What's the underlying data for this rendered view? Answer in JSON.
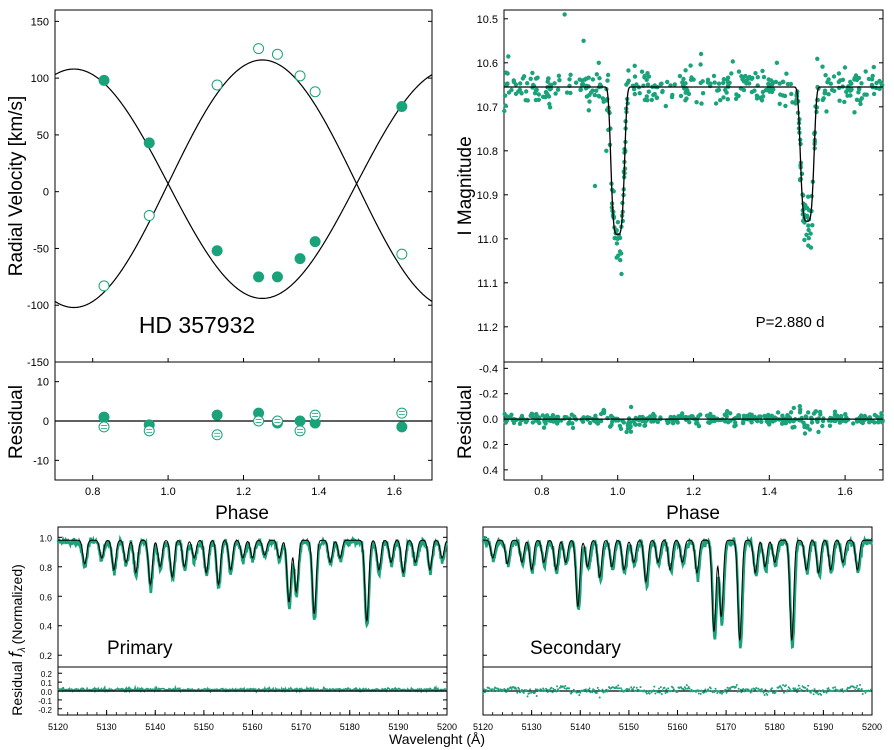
{
  "colors": {
    "data": "#1aa37a",
    "model": "#000000",
    "frame": "#000000"
  },
  "chart_data": [
    {
      "id": "rv",
      "type": "scatter",
      "ylabel": "Radial Velocity [km/s]",
      "annotation": "HD 357932",
      "xlim": [
        0.7,
        1.7
      ],
      "ylim": [
        -150,
        160
      ],
      "yticks": [
        "-150",
        "-100",
        "-50",
        "0",
        "50",
        "100",
        "150"
      ],
      "series": [
        {
          "marker": "filled",
          "x": [
            0.83,
            0.95,
            1.13,
            1.24,
            1.29,
            1.35,
            1.39,
            1.62
          ],
          "y": [
            98,
            43,
            -52,
            -75,
            -75,
            -59,
            -44,
            75
          ]
        },
        {
          "marker": "open",
          "x": [
            0.83,
            0.95,
            1.13,
            1.24,
            1.29,
            1.35,
            1.39,
            1.62
          ],
          "y": [
            -83,
            -21,
            94,
            126,
            121,
            102,
            88,
            -55
          ]
        }
      ],
      "model": {
        "gamma": 7,
        "k1": 101,
        "k2": 109,
        "phase_zero": 1.0
      }
    },
    {
      "id": "rv-resid",
      "type": "scatter",
      "ylabel": "Residual",
      "xlabel": "Phase",
      "xlim": [
        0.7,
        1.7
      ],
      "ylim": [
        -15,
        15
      ],
      "yticks": [
        "-10",
        "0",
        "10"
      ],
      "xticks": [
        "0.8",
        "1.0",
        "1.2",
        "1.4",
        "1.6"
      ],
      "series": [
        {
          "marker": "filled",
          "x": [
            0.83,
            0.95,
            1.13,
            1.24,
            1.29,
            1.35,
            1.39,
            1.62
          ],
          "y": [
            1,
            -1,
            1.5,
            2,
            -0.5,
            0,
            -0.5,
            -1.5
          ]
        },
        {
          "marker": "open",
          "x": [
            0.83,
            0.95,
            1.13,
            1.24,
            1.29,
            1.35,
            1.39,
            1.62
          ],
          "y": [
            -1.5,
            -2.5,
            -3.5,
            0,
            0,
            -2.5,
            1.5,
            2
          ]
        }
      ]
    },
    {
      "id": "lc",
      "type": "scatter",
      "ylabel": "I Magnitude",
      "annotation": "P=2.880 d",
      "xlim": [
        0.7,
        1.7
      ],
      "ylim": [
        11.28,
        10.48
      ],
      "yticks": [
        "10.5",
        "10.6",
        "10.7",
        "10.8",
        "10.9",
        "11.0",
        "11.1",
        "11.2"
      ],
      "outliers": {
        "x": [
          0.86,
          0.91,
          0.94,
          0.99,
          1.0,
          1.01,
          0.97,
          1.22,
          1.42,
          1.49,
          1.5,
          1.51,
          0.95,
          1.32
        ],
        "y": [
          10.49,
          10.55,
          10.88,
          10.95,
          11.0,
          11.08,
          10.8,
          10.58,
          10.6,
          10.92,
          10.95,
          11.02,
          10.6,
          10.62
        ]
      },
      "model": {
        "base": 10.655,
        "depth1": 0.335,
        "depth2": 0.305,
        "width": 0.02
      }
    },
    {
      "id": "lc-resid",
      "type": "scatter",
      "ylabel": "Residual",
      "xlabel": "Phase",
      "xlim": [
        0.7,
        1.7
      ],
      "ylim": [
        0.48,
        -0.45
      ],
      "yticks": [
        "-0.4",
        "-0.2",
        "0.0",
        "0.2",
        "0.4"
      ],
      "xticks": [
        "0.8",
        "1.0",
        "1.2",
        "1.4",
        "1.6"
      ]
    },
    {
      "id": "sp1",
      "type": "line",
      "annotation": "Primary",
      "xlim": [
        5120,
        5200
      ],
      "ylim": [
        0.12,
        1.07
      ],
      "yticks": [
        "0.2",
        "0.4",
        "0.6",
        "0.8",
        "1.0"
      ],
      "lines": [
        {
          "c": 5125.5,
          "d": 0.16
        },
        {
          "c": 5129,
          "d": 0.12
        },
        {
          "c": 5131.5,
          "d": 0.2
        },
        {
          "c": 5134,
          "d": 0.15
        },
        {
          "c": 5136,
          "d": 0.22
        },
        {
          "c": 5139,
          "d": 0.3
        },
        {
          "c": 5141,
          "d": 0.18
        },
        {
          "c": 5143.5,
          "d": 0.25
        },
        {
          "c": 5146,
          "d": 0.18
        },
        {
          "c": 5148,
          "d": 0.12
        },
        {
          "c": 5150.5,
          "d": 0.22
        },
        {
          "c": 5153,
          "d": 0.3
        },
        {
          "c": 5155.5,
          "d": 0.2
        },
        {
          "c": 5158,
          "d": 0.12
        },
        {
          "c": 5160,
          "d": 0.12
        },
        {
          "c": 5162.5,
          "d": 0.1
        },
        {
          "c": 5165.5,
          "d": 0.12
        },
        {
          "c": 5167.5,
          "d": 0.42
        },
        {
          "c": 5169,
          "d": 0.35
        },
        {
          "c": 5172.7,
          "d": 0.5
        },
        {
          "c": 5176,
          "d": 0.15
        },
        {
          "c": 5178,
          "d": 0.12
        },
        {
          "c": 5183.5,
          "d": 0.55
        },
        {
          "c": 5186,
          "d": 0.2
        },
        {
          "c": 5188.5,
          "d": 0.15
        },
        {
          "c": 5191,
          "d": 0.22
        },
        {
          "c": 5193.5,
          "d": 0.15
        },
        {
          "c": 5196.5,
          "d": 0.2
        },
        {
          "c": 5199,
          "d": 0.12
        }
      ]
    },
    {
      "id": "sp1-resid",
      "type": "line",
      "ylabel": "Residual",
      "xlim": [
        5120,
        5200
      ],
      "ylim": [
        -0.27,
        0.27
      ],
      "yticks": [
        "0.2",
        "0.1",
        "0.0",
        "-0.1",
        "-0.2"
      ],
      "xticks": [
        "5120",
        "5130",
        "5140",
        "5150",
        "5160",
        "5170",
        "5180",
        "5190",
        "5200"
      ]
    },
    {
      "id": "sp2",
      "type": "line",
      "annotation": "Secondary",
      "xlim": [
        5120,
        5200
      ],
      "ylim": [
        0.12,
        1.07
      ],
      "lines": [
        {
          "c": 5122,
          "d": 0.12
        },
        {
          "c": 5125,
          "d": 0.16
        },
        {
          "c": 5128,
          "d": 0.15
        },
        {
          "c": 5130,
          "d": 0.2
        },
        {
          "c": 5132.5,
          "d": 0.15
        },
        {
          "c": 5135,
          "d": 0.2
        },
        {
          "c": 5137,
          "d": 0.15
        },
        {
          "c": 5139.5,
          "d": 0.45
        },
        {
          "c": 5141.5,
          "d": 0.18
        },
        {
          "c": 5144,
          "d": 0.25
        },
        {
          "c": 5146.5,
          "d": 0.18
        },
        {
          "c": 5149,
          "d": 0.2
        },
        {
          "c": 5151,
          "d": 0.15
        },
        {
          "c": 5153.5,
          "d": 0.28
        },
        {
          "c": 5156,
          "d": 0.15
        },
        {
          "c": 5158.5,
          "d": 0.2
        },
        {
          "c": 5161,
          "d": 0.15
        },
        {
          "c": 5164,
          "d": 0.22
        },
        {
          "c": 5167.5,
          "d": 0.62
        },
        {
          "c": 5169,
          "d": 0.52
        },
        {
          "c": 5172.8,
          "d": 0.68
        },
        {
          "c": 5176,
          "d": 0.22
        },
        {
          "c": 5178,
          "d": 0.18
        },
        {
          "c": 5180,
          "d": 0.15
        },
        {
          "c": 5183.5,
          "d": 0.68
        },
        {
          "c": 5186.5,
          "d": 0.2
        },
        {
          "c": 5189,
          "d": 0.22
        },
        {
          "c": 5191.5,
          "d": 0.2
        },
        {
          "c": 5194,
          "d": 0.15
        },
        {
          "c": 5197,
          "d": 0.2
        }
      ]
    },
    {
      "id": "sp2-resid",
      "type": "line",
      "xlim": [
        5120,
        5200
      ],
      "ylim": [
        -0.27,
        0.27
      ],
      "xticks": [
        "5120",
        "5130",
        "5140",
        "5150",
        "5160",
        "5170",
        "5180",
        "5190",
        "5200"
      ]
    }
  ],
  "labels": {
    "phase_left": "Phase",
    "phase_right": "Phase",
    "spec_ylabel_prefix": "Residual",
    "spec_ylabel_f": "f",
    "spec_ylabel_sub": "λ",
    "spec_ylabel_suffix": "(Normalized)",
    "spec_xlabel": "Wavelenght (Å)"
  }
}
